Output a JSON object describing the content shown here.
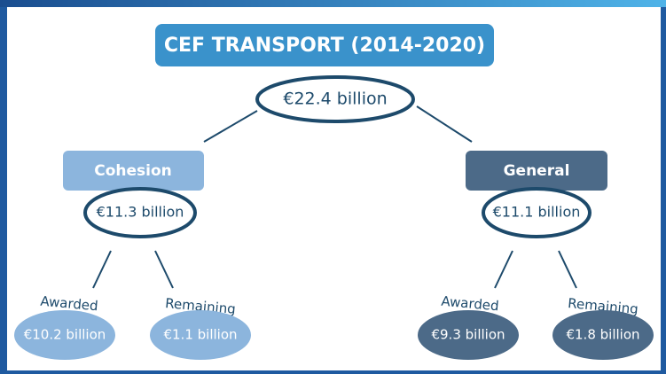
{
  "title": "CEF TRANSPORT (2014-2020)",
  "total": "€22.4 billion",
  "branches": [
    {
      "name": "Cohesion",
      "amount": "€11.3 billion",
      "awarded_label": "Awarded",
      "awarded": "€10.2 billion",
      "remaining_label": "Remaining",
      "remaining": "€1.1 billion"
    },
    {
      "name": "General",
      "amount": "€11.1 billion",
      "awarded_label": "Awarded",
      "awarded": "€9.3 billion",
      "remaining_label": "Remaining",
      "remaining": "€1.8 billion"
    }
  ]
}
